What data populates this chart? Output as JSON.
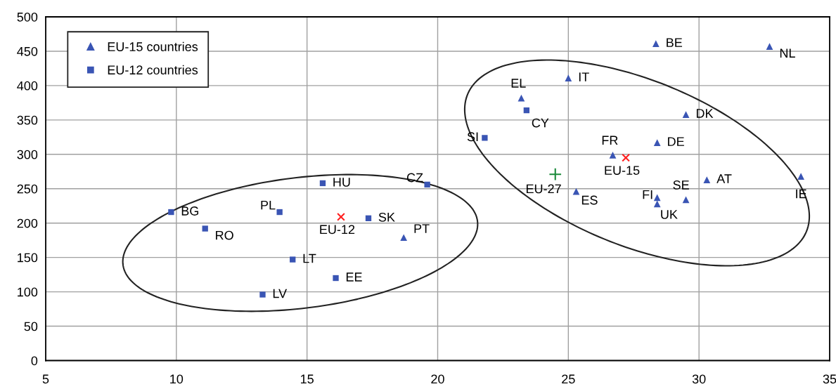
{
  "chart_data": {
    "type": "scatter",
    "legend": "top left",
    "grid": true,
    "xlim": [
      5,
      35
    ],
    "xticks": [
      5,
      10,
      15,
      20,
      25,
      30,
      35
    ],
    "ylim": [
      0,
      500
    ],
    "yticks": [
      0,
      50,
      100,
      150,
      200,
      250,
      300,
      350,
      400,
      450,
      500
    ],
    "series": [
      {
        "name": "EU-15 countries",
        "color": "#3a55b4",
        "marker": "triangle",
        "x": [
          28.35,
          32.7,
          25.0,
          23.2,
          29.5,
          28.4,
          26.7,
          30.3,
          33.9,
          25.3,
          28.4,
          28.4,
          29.5,
          18.7
        ],
        "values": [
          461,
          457,
          411,
          382,
          358,
          317,
          299,
          263,
          268,
          246,
          237,
          228,
          234,
          179
        ]
      },
      {
        "name": "EU-12 countries",
        "color": "#3a55b4",
        "marker": "square",
        "x": [
          23.4,
          21.8,
          19.6,
          15.6,
          9.8,
          11.1,
          13.95,
          17.35,
          14.45,
          16.1,
          13.3
        ],
        "values": [
          364,
          324,
          256,
          258,
          216,
          192,
          216,
          207,
          147,
          120,
          96
        ]
      },
      {
        "color": "#ff2020",
        "marker": "cross",
        "x": [
          16.3,
          27.2
        ],
        "values": [
          209,
          295
        ]
      },
      {
        "color": "#1a8a3a",
        "marker": "plus",
        "x": [
          24.5
        ],
        "values": [
          271
        ]
      }
    ],
    "annotations": [
      {
        "text": "BE",
        "x": 28.35,
        "y": 461
      },
      {
        "text": "NL",
        "x": 32.7,
        "y": 457
      },
      {
        "text": "IT",
        "x": 25.0,
        "y": 411
      },
      {
        "text": "EL",
        "x": 23.2,
        "y": 382
      },
      {
        "text": "DK",
        "x": 29.5,
        "y": 358
      },
      {
        "text": "DE",
        "x": 28.4,
        "y": 317
      },
      {
        "text": "FR",
        "x": 26.7,
        "y": 299
      },
      {
        "text": "AT",
        "x": 30.3,
        "y": 263
      },
      {
        "text": "IE",
        "x": 33.9,
        "y": 268
      },
      {
        "text": "ES",
        "x": 25.3,
        "y": 246
      },
      {
        "text": "FI",
        "x": 28.4,
        "y": 237
      },
      {
        "text": "UK",
        "x": 28.4,
        "y": 228
      },
      {
        "text": "SE",
        "x": 29.5,
        "y": 234
      },
      {
        "text": "PT",
        "x": 18.7,
        "y": 179
      },
      {
        "text": "CY",
        "x": 23.4,
        "y": 364
      },
      {
        "text": "SI",
        "x": 21.8,
        "y": 324
      },
      {
        "text": "CZ",
        "x": 19.6,
        "y": 256
      },
      {
        "text": "HU",
        "x": 15.6,
        "y": 258
      },
      {
        "text": "BG",
        "x": 9.8,
        "y": 216
      },
      {
        "text": "RO",
        "x": 11.1,
        "y": 192
      },
      {
        "text": "PL",
        "x": 13.95,
        "y": 216
      },
      {
        "text": "SK",
        "x": 17.35,
        "y": 207
      },
      {
        "text": "LT",
        "x": 14.45,
        "y": 147
      },
      {
        "text": "EE",
        "x": 16.1,
        "y": 120
      },
      {
        "text": "LV",
        "x": 13.3,
        "y": 96
      },
      {
        "text": "EU-12",
        "x": 16.3,
        "y": 209
      },
      {
        "text": "EU-15",
        "x": 27.2,
        "y": 295
      },
      {
        "text": "EU-27",
        "x": 24.5,
        "y": 271
      }
    ]
  }
}
